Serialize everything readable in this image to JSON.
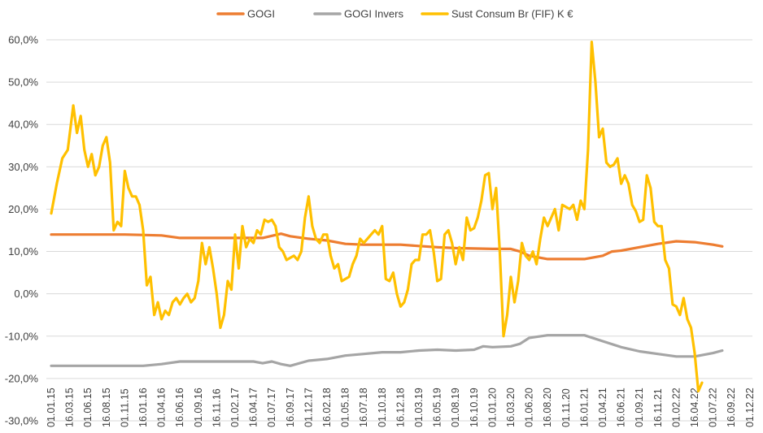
{
  "chart_data": {
    "type": "line",
    "legend_position": "top",
    "grid": true,
    "ylim": [
      -30,
      60
    ],
    "y_ticks": [
      -30,
      -20,
      -10,
      0,
      10,
      20,
      30,
      40,
      50,
      60
    ],
    "y_tick_labels": [
      "-30,0%",
      "-20,0%",
      "-10,0%",
      "0,0%",
      "10,0%",
      "20,0%",
      "30,0%",
      "40,0%",
      "50,0%",
      "60,0%"
    ],
    "x_tick_labels": [
      "01.01.15",
      "16.03.15",
      "01.06.15",
      "16.08.15",
      "01.11.15",
      "16.01.16",
      "01.04.16",
      "16.06.16",
      "01.09.16",
      "16.11.16",
      "01.02.17",
      "16.04.17",
      "01.07.17",
      "16.09.17",
      "01.12.17",
      "16.02.18",
      "01.05.18",
      "16.07.18",
      "01.10.18",
      "16.12.18",
      "01.03.19",
      "16.05.19",
      "01.08.19",
      "16.10.19",
      "01.01.20",
      "16.03.20",
      "01.06.20",
      "16.08.20",
      "01.11.20",
      "16.01.21",
      "01.04.21",
      "16.06.21",
      "01.09.21",
      "16.11.21",
      "01.02.22",
      "16.04.22",
      "01.07.22",
      "16.09.22",
      "01.12.22"
    ],
    "series": [
      {
        "name": "GOGI",
        "color": "#ED7D31",
        "points": [
          [
            0,
            14
          ],
          [
            4,
            14
          ],
          [
            6,
            13.8
          ],
          [
            7,
            13.2
          ],
          [
            10,
            13.2
          ],
          [
            11,
            13.2
          ],
          [
            11.5,
            13.2
          ],
          [
            12.5,
            14.2
          ],
          [
            13,
            13.6
          ],
          [
            14,
            13.0
          ],
          [
            15,
            12.6
          ],
          [
            16,
            11.8
          ],
          [
            17,
            11.6
          ],
          [
            18,
            11.6
          ],
          [
            19,
            11.6
          ],
          [
            20,
            11.3
          ],
          [
            21,
            11.0
          ],
          [
            22,
            10.8
          ],
          [
            24,
            10.6
          ],
          [
            25,
            10.6
          ],
          [
            25.5,
            10.0
          ],
          [
            26,
            9.0
          ],
          [
            27,
            8.2
          ],
          [
            28,
            8.2
          ],
          [
            29,
            8.2
          ],
          [
            30,
            9.0
          ],
          [
            30.5,
            10.0
          ],
          [
            31,
            10.2
          ],
          [
            32,
            11.0
          ],
          [
            33,
            11.8
          ],
          [
            34,
            12.4
          ],
          [
            35,
            12.2
          ],
          [
            36,
            11.6
          ],
          [
            36.5,
            11.2
          ]
        ]
      },
      {
        "name": "GOGI Invers",
        "color": "#A5A5A5",
        "points": [
          [
            0,
            -17
          ],
          [
            4,
            -17
          ],
          [
            5,
            -17
          ],
          [
            6,
            -16.6
          ],
          [
            7,
            -16
          ],
          [
            10,
            -16
          ],
          [
            11,
            -16
          ],
          [
            11.5,
            -16.4
          ],
          [
            12,
            -16
          ],
          [
            12.5,
            -16.6
          ],
          [
            13,
            -17
          ],
          [
            14,
            -15.8
          ],
          [
            15,
            -15.4
          ],
          [
            16,
            -14.6
          ],
          [
            17,
            -14.2
          ],
          [
            18,
            -13.8
          ],
          [
            19,
            -13.8
          ],
          [
            20,
            -13.4
          ],
          [
            21,
            -13.2
          ],
          [
            22,
            -13.4
          ],
          [
            23,
            -13.2
          ],
          [
            23.5,
            -12.4
          ],
          [
            24,
            -12.6
          ],
          [
            25,
            -12.4
          ],
          [
            25.5,
            -11.8
          ],
          [
            26,
            -10.4
          ],
          [
            27,
            -9.8
          ],
          [
            28,
            -9.8
          ],
          [
            29,
            -9.8
          ],
          [
            30,
            -11.2
          ],
          [
            31,
            -12.6
          ],
          [
            32,
            -13.6
          ],
          [
            33,
            -14.2
          ],
          [
            34,
            -14.8
          ],
          [
            35,
            -14.8
          ],
          [
            36,
            -14.0
          ],
          [
            36.5,
            -13.4
          ]
        ]
      },
      {
        "name": "Sust Consum Br (FIF) K €",
        "color": "#FFC000",
        "points": [
          [
            0,
            19
          ],
          [
            0.3,
            26
          ],
          [
            0.6,
            32
          ],
          [
            0.9,
            34
          ],
          [
            1.2,
            44.5
          ],
          [
            1.4,
            38
          ],
          [
            1.6,
            42
          ],
          [
            1.8,
            34
          ],
          [
            2.0,
            30
          ],
          [
            2.2,
            33
          ],
          [
            2.4,
            28
          ],
          [
            2.6,
            30
          ],
          [
            2.8,
            35
          ],
          [
            3.0,
            37
          ],
          [
            3.2,
            31
          ],
          [
            3.4,
            15
          ],
          [
            3.6,
            17
          ],
          [
            3.8,
            16
          ],
          [
            4.0,
            29
          ],
          [
            4.2,
            25
          ],
          [
            4.4,
            23
          ],
          [
            4.6,
            23
          ],
          [
            4.8,
            21
          ],
          [
            5.0,
            15
          ],
          [
            5.2,
            2
          ],
          [
            5.4,
            4
          ],
          [
            5.6,
            -5
          ],
          [
            5.8,
            -2
          ],
          [
            6.0,
            -6
          ],
          [
            6.2,
            -4
          ],
          [
            6.4,
            -5
          ],
          [
            6.6,
            -2
          ],
          [
            6.8,
            -1
          ],
          [
            7.0,
            -2.5
          ],
          [
            7.2,
            -1
          ],
          [
            7.4,
            0
          ],
          [
            7.6,
            -2
          ],
          [
            7.8,
            -1
          ],
          [
            8.0,
            3
          ],
          [
            8.2,
            12
          ],
          [
            8.4,
            7
          ],
          [
            8.6,
            11
          ],
          [
            8.8,
            6
          ],
          [
            9.0,
            0
          ],
          [
            9.2,
            -8
          ],
          [
            9.4,
            -5
          ],
          [
            9.6,
            3
          ],
          [
            9.8,
            1
          ],
          [
            10.0,
            14
          ],
          [
            10.2,
            6
          ],
          [
            10.4,
            16
          ],
          [
            10.6,
            11
          ],
          [
            10.8,
            13
          ],
          [
            11.0,
            12
          ],
          [
            11.2,
            15
          ],
          [
            11.4,
            14
          ],
          [
            11.6,
            17.5
          ],
          [
            11.8,
            17
          ],
          [
            12.0,
            17.5
          ],
          [
            12.2,
            16
          ],
          [
            12.4,
            11
          ],
          [
            12.6,
            10
          ],
          [
            12.8,
            8
          ],
          [
            13.0,
            8.5
          ],
          [
            13.2,
            9
          ],
          [
            13.4,
            8
          ],
          [
            13.6,
            10
          ],
          [
            13.8,
            18
          ],
          [
            14.0,
            23
          ],
          [
            14.2,
            16
          ],
          [
            14.4,
            13
          ],
          [
            14.6,
            12
          ],
          [
            14.8,
            14
          ],
          [
            15.0,
            14
          ],
          [
            15.2,
            9
          ],
          [
            15.4,
            6
          ],
          [
            15.6,
            7
          ],
          [
            15.8,
            3
          ],
          [
            16.0,
            3.5
          ],
          [
            16.2,
            4
          ],
          [
            16.4,
            7
          ],
          [
            16.6,
            9
          ],
          [
            16.8,
            13
          ],
          [
            17.0,
            12
          ],
          [
            17.2,
            13
          ],
          [
            17.4,
            14
          ],
          [
            17.6,
            15
          ],
          [
            17.8,
            14
          ],
          [
            18.0,
            16
          ],
          [
            18.2,
            3.5
          ],
          [
            18.4,
            3
          ],
          [
            18.6,
            5
          ],
          [
            18.8,
            0
          ],
          [
            19.0,
            -3
          ],
          [
            19.2,
            -2
          ],
          [
            19.4,
            1
          ],
          [
            19.6,
            7
          ],
          [
            19.8,
            8
          ],
          [
            20.0,
            8
          ],
          [
            20.2,
            14
          ],
          [
            20.4,
            14
          ],
          [
            20.6,
            15
          ],
          [
            20.8,
            10
          ],
          [
            21.0,
            3
          ],
          [
            21.2,
            3.5
          ],
          [
            21.4,
            14
          ],
          [
            21.6,
            15
          ],
          [
            21.8,
            12
          ],
          [
            22.0,
            7
          ],
          [
            22.2,
            11
          ],
          [
            22.4,
            8
          ],
          [
            22.6,
            18
          ],
          [
            22.8,
            15
          ],
          [
            23.0,
            15.5
          ],
          [
            23.2,
            18
          ],
          [
            23.4,
            22
          ],
          [
            23.6,
            28
          ],
          [
            23.8,
            28.5
          ],
          [
            24.0,
            20
          ],
          [
            24.2,
            25
          ],
          [
            24.4,
            10
          ],
          [
            24.6,
            -10
          ],
          [
            24.8,
            -5
          ],
          [
            25.0,
            4
          ],
          [
            25.2,
            -2
          ],
          [
            25.4,
            3
          ],
          [
            25.6,
            12
          ],
          [
            25.8,
            9
          ],
          [
            26.0,
            8
          ],
          [
            26.2,
            10
          ],
          [
            26.4,
            7
          ],
          [
            26.6,
            13
          ],
          [
            26.8,
            18
          ],
          [
            27.0,
            16
          ],
          [
            27.2,
            18
          ],
          [
            27.4,
            20
          ],
          [
            27.6,
            15
          ],
          [
            27.8,
            21
          ],
          [
            28.0,
            20.5
          ],
          [
            28.2,
            20
          ],
          [
            28.4,
            21
          ],
          [
            28.6,
            17.5
          ],
          [
            28.8,
            22
          ],
          [
            29.0,
            20
          ],
          [
            29.2,
            34
          ],
          [
            29.4,
            59.5
          ],
          [
            29.6,
            50
          ],
          [
            29.8,
            37
          ],
          [
            30.0,
            39
          ],
          [
            30.2,
            31
          ],
          [
            30.4,
            30
          ],
          [
            30.6,
            30.5
          ],
          [
            30.8,
            32
          ],
          [
            31.0,
            26
          ],
          [
            31.2,
            28
          ],
          [
            31.4,
            26
          ],
          [
            31.6,
            21
          ],
          [
            31.8,
            19.5
          ],
          [
            32.0,
            17
          ],
          [
            32.2,
            17.5
          ],
          [
            32.4,
            28
          ],
          [
            32.6,
            25
          ],
          [
            32.8,
            17
          ],
          [
            33.0,
            16
          ],
          [
            33.2,
            16
          ],
          [
            33.4,
            8
          ],
          [
            33.6,
            6
          ],
          [
            33.8,
            -2.5
          ],
          [
            34.0,
            -3
          ],
          [
            34.2,
            -5
          ],
          [
            34.4,
            -1
          ],
          [
            34.6,
            -6
          ],
          [
            34.8,
            -8
          ],
          [
            35.0,
            -14
          ],
          [
            35.2,
            -23
          ],
          [
            35.4,
            -21
          ]
        ]
      }
    ]
  }
}
